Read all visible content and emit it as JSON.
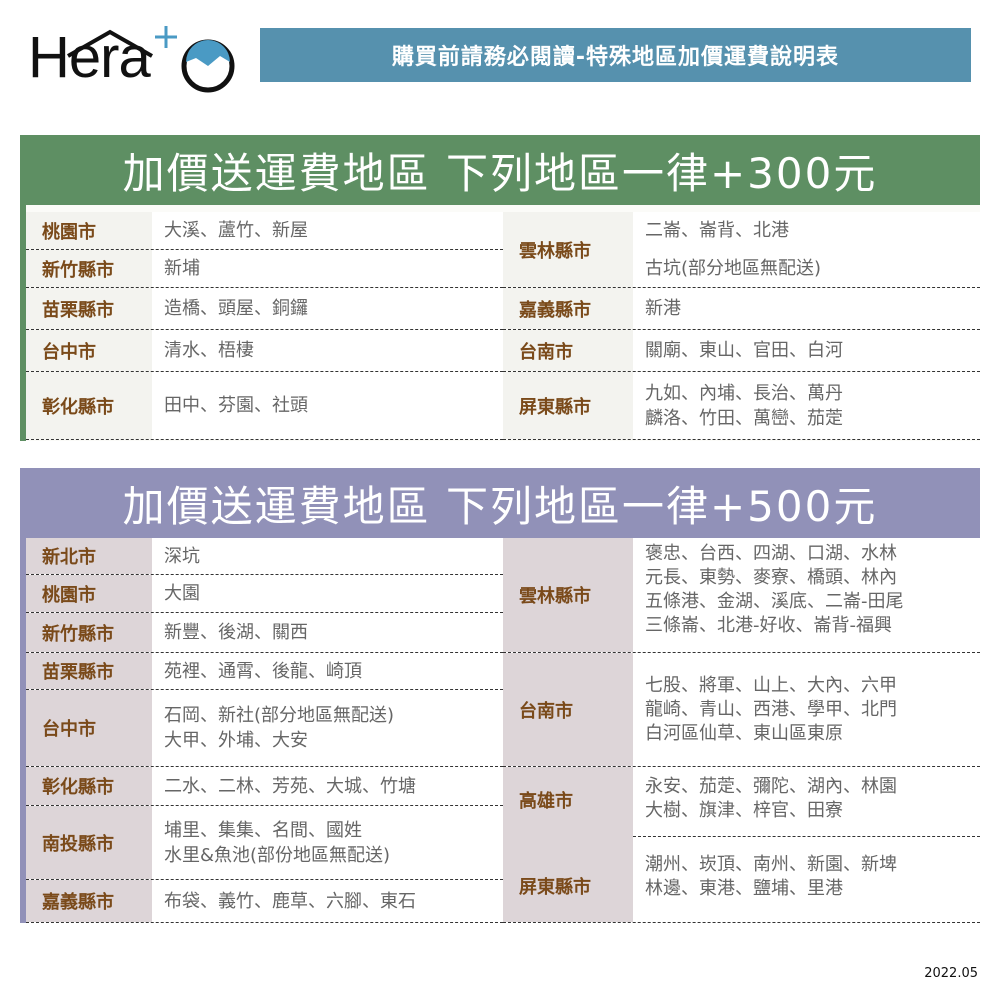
{
  "logo": {
    "text": "Hera",
    "plus": "+",
    "brand_color": "#4a9ac4"
  },
  "banner": {
    "title": "購買前請務必閱讀-特殊地區加價運費說明表",
    "color": "#5691ae"
  },
  "section_300": {
    "title": "加價送運費地區 下列地區一律+300元",
    "color": "#5e8f63",
    "left": [
      {
        "region": "桃園市",
        "areas": [
          "大溪、蘆竹、新屋"
        ]
      },
      {
        "region": "新竹縣市",
        "areas": [
          "新埔"
        ]
      },
      {
        "region": "苗栗縣市",
        "areas": [
          "造橋、頭屋、銅鑼"
        ]
      },
      {
        "region": "台中市",
        "areas": [
          "清水、梧棲"
        ]
      },
      {
        "region": "彰化縣市",
        "areas": [
          "田中、芬園、社頭"
        ]
      }
    ],
    "right": [
      {
        "region": "雲林縣市",
        "areas": [
          "二崙、崙背、北港",
          "古坑(部分地區無配送)"
        ]
      },
      {
        "region": "嘉義縣市",
        "areas": [
          "新港"
        ]
      },
      {
        "region": "台南市",
        "areas": [
          "關廟、東山、官田、白河"
        ]
      },
      {
        "region": "屏東縣市",
        "areas": [
          "九如、內埔、長治、萬丹",
          "麟洛、竹田、萬巒、茄萣"
        ]
      }
    ]
  },
  "section_500": {
    "title": "加價送運費地區 下列地區一律+500元",
    "color": "#9191b8",
    "left": [
      {
        "region": "新北市",
        "areas": [
          "深坑"
        ]
      },
      {
        "region": "桃園市",
        "areas": [
          "大園"
        ]
      },
      {
        "region": "新竹縣市",
        "areas": [
          "新豐、後湖、關西"
        ]
      },
      {
        "region": "苗栗縣市",
        "areas": [
          "苑裡、通霄、後龍、崎頂"
        ]
      },
      {
        "region": "台中市",
        "areas": [
          "石岡、新社(部分地區無配送)",
          "大甲、外埔、大安"
        ]
      },
      {
        "region": "彰化縣市",
        "areas": [
          "二水、二林、芳苑、大城、竹塘"
        ]
      },
      {
        "region": "南投縣市",
        "areas": [
          "埔里、集集、名間、國姓",
          "水里&魚池(部份地區無配送)"
        ]
      },
      {
        "region": "嘉義縣市",
        "areas": [
          "布袋、義竹、鹿草、六腳、東石"
        ]
      }
    ],
    "right": [
      {
        "region": "雲林縣市",
        "areas": [
          "褒忠、台西、四湖、口湖、水林",
          "元長、東勢、麥寮、橋頭、林內",
          "五條港、金湖、溪底、二崙-田尾",
          "三條崙、北港-好收、崙背-福興"
        ]
      },
      {
        "region": "台南市",
        "areas": [
          "七股、將軍、山上、大內、六甲",
          "龍崎、青山、西港、學甲、北門",
          "白河區仙草、東山區東原"
        ]
      },
      {
        "region": "高雄市",
        "areas": [
          "永安、茄萣、彌陀、湖內、林園",
          "大樹、旗津、梓官、田寮"
        ]
      },
      {
        "region": "屏東縣市",
        "areas": [
          "潮州、崁頂、南州、新園、新埤",
          "林邊、東港、鹽埔、里港"
        ]
      }
    ]
  },
  "date": "2022.05"
}
